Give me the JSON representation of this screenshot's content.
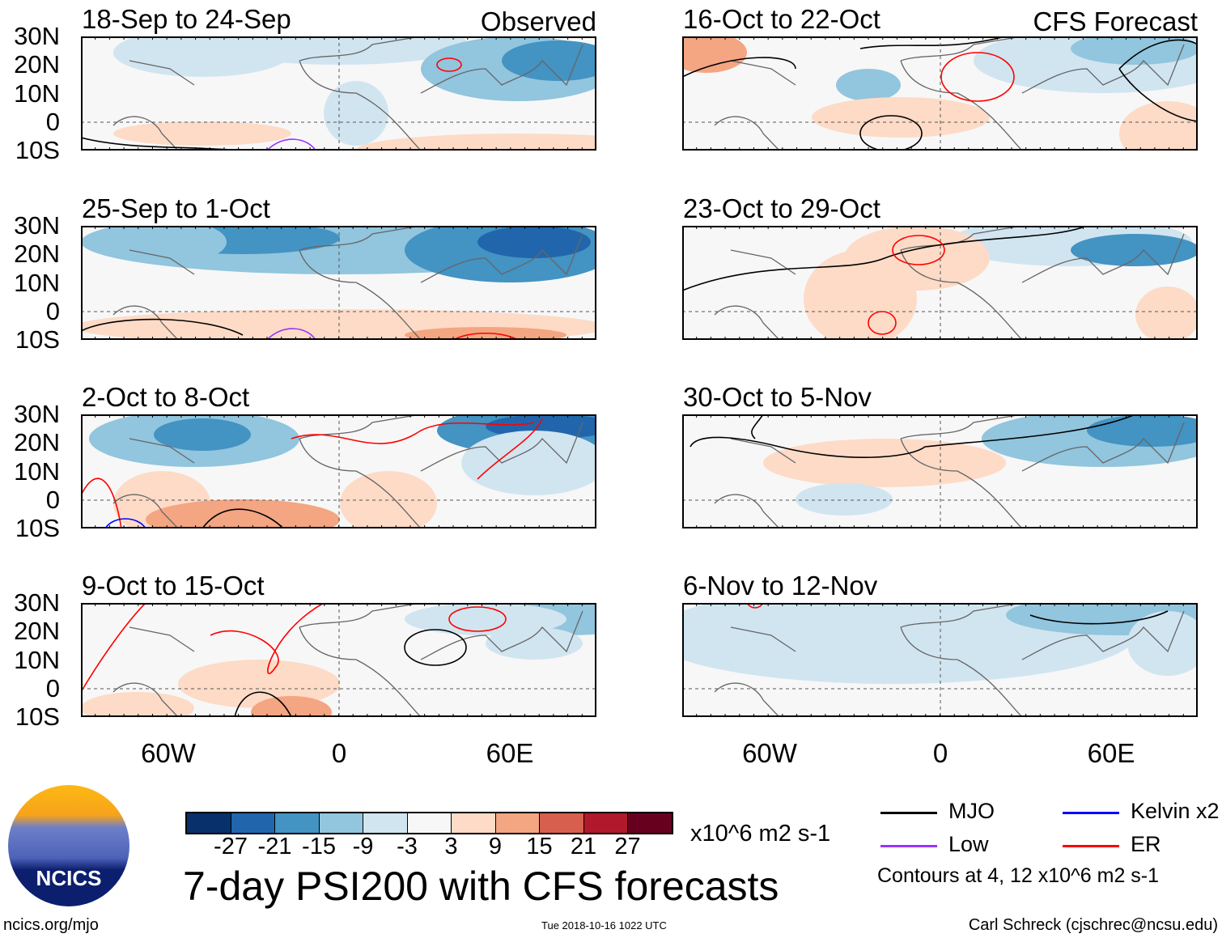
{
  "panels_left": [
    {
      "title": "18-Sep to 24-Sep",
      "tag": "Observed"
    },
    {
      "title": "25-Sep to 1-Oct",
      "tag": ""
    },
    {
      "title": "2-Oct to 8-Oct",
      "tag": ""
    },
    {
      "title": "9-Oct to 15-Oct",
      "tag": ""
    }
  ],
  "panels_right": [
    {
      "title": "16-Oct to 22-Oct",
      "tag": "CFS Forecast"
    },
    {
      "title": "23-Oct to 29-Oct",
      "tag": ""
    },
    {
      "title": "30-Oct to 5-Nov",
      "tag": ""
    },
    {
      "title": "6-Nov to 12-Nov",
      "tag": ""
    }
  ],
  "lat_labels": [
    "30N",
    "20N",
    "10N",
    "0",
    "10S"
  ],
  "lon_labels": [
    "60W",
    "0",
    "60E"
  ],
  "colorbar": {
    "colors": [
      "#08306b",
      "#2166ac",
      "#4393c3",
      "#92c5de",
      "#d1e5f0",
      "#f7f7f7",
      "#fddbc7",
      "#f4a582",
      "#d6604d",
      "#b2182b",
      "#67001f"
    ],
    "labels": [
      "-27",
      "-21",
      "-15",
      "-9",
      "-3",
      "3",
      "9",
      "15",
      "21",
      "27"
    ],
    "units": "x10^6 m2 s-1"
  },
  "title": "7-day PSI200 with CFS forecasts",
  "legend": [
    {
      "label": "MJO",
      "color": "#000000"
    },
    {
      "label": "Kelvin x2",
      "color": "#0000ff"
    },
    {
      "label": "Low",
      "color": "#9933ff"
    },
    {
      "label": "ER",
      "color": "#ff0000"
    }
  ],
  "contours_note": "Contours at 4, 12 x10^6 m2 s-1",
  "logo_text": "NCICS",
  "footer": {
    "left": "ncics.org/mjo",
    "center": "Tue 2018-10-16 1022 UTC",
    "right": "Carl Schreck (cjschrec@ncsu.edu)"
  }
}
